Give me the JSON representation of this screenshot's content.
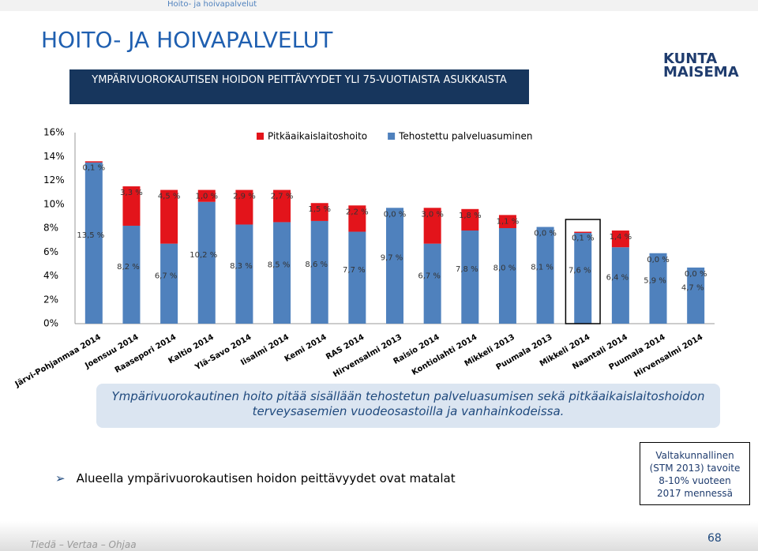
{
  "header": {
    "breadcrumb": "Hoito- ja hoivapalvelut",
    "title": "HOITO- JA HOIVAPALVELUT",
    "subtitle": "YMPÄRIVUOROKAUTISEN HOIDON PEITTÄVYYDET YLI 75-VUOTIAISTA ASUKKAISTA",
    "logo": [
      "KUNTA",
      "MAISEMA"
    ]
  },
  "chart_data": {
    "type": "stacked_bar",
    "categories": [
      "Järvi-Pohjanmaa 2014",
      "Joensuu 2014",
      "Raasepori 2014",
      "Kaltio 2014",
      "Ylä-Savo 2014",
      "Iisalmi 2014",
      "Kemi 2014",
      "RAS 2014",
      "Hirvensalmi 2013",
      "Raisio 2014",
      "Kontiolahti 2014",
      "Mikkeli 2013",
      "Puumala 2013",
      "Mikkeli 2014",
      "Naantali 2014",
      "Puumala 2014",
      "Hirvensalmi 2014"
    ],
    "series": [
      {
        "name": "Tehostettu palveluasuminen",
        "color": "#4f81bd",
        "values": [
          13.5,
          8.2,
          6.7,
          10.2,
          8.3,
          8.5,
          8.6,
          7.7,
          9.7,
          6.7,
          7.8,
          8.0,
          8.1,
          7.6,
          6.4,
          5.9,
          4.7
        ],
        "value_labels": [
          "13,5 %",
          "8,2 %",
          "6,7 %",
          "10,2 %",
          "8,3 %",
          "8,5 %",
          "8,6 %",
          "7,7 %",
          "9,7 %",
          "6,7 %",
          "7,8 %",
          "8,0 %",
          "8,1 %",
          "7,6 %",
          "6,4 %",
          "5,9 %",
          "4,7 %"
        ]
      },
      {
        "name": "Pitkäaikaislaitoshoito",
        "color": "#e3141b",
        "values": [
          0.1,
          3.3,
          4.5,
          1.0,
          2.9,
          2.7,
          1.5,
          2.2,
          0.0,
          3.0,
          1.8,
          1.1,
          0.0,
          0.1,
          1.4,
          0.0,
          0.0
        ],
        "value_labels": [
          "0,1 %",
          "3,3 %",
          "4,5 %",
          "1,0 %",
          "2,9 %",
          "2,7 %",
          "1,5 %",
          "2,2 %",
          "0,0 %",
          "3,0 %",
          "1,8 %",
          "1,1 %",
          "0,0 %",
          "0,1 %",
          "1,4 %",
          "0,0 %",
          "0,0 %"
        ]
      }
    ],
    "ylim": [
      0,
      16
    ],
    "yticks": [
      {
        "value": 0,
        "label": "0%"
      },
      {
        "value": 2,
        "label": "2%"
      },
      {
        "value": 4,
        "label": "4%"
      },
      {
        "value": 6,
        "label": "6%"
      },
      {
        "value": 8,
        "label": "8%"
      },
      {
        "value": 10,
        "label": "10%"
      },
      {
        "value": 12,
        "label": "12%"
      },
      {
        "value": 14,
        "label": "14%"
      },
      {
        "value": 16,
        "label": "16%"
      }
    ]
  },
  "note": "Ympärivuorokautinen hoito pitää sisällään tehostetun palveluasumisen sekä pitkäaikaislaitoshoidon terveysasemien vuodeosastoilla ja vanhainkodeissa.",
  "bullet": "Alueella ympärivuorokautisen hoidon peittävyydet ovat matalat",
  "target_box": "Valtakunnallinen (STM 2013) tavoite 8-10% vuoteen 2017 mennessä",
  "footer": {
    "slogan": "Tiedä – Vertaa – Ohjaa",
    "page": "68"
  }
}
